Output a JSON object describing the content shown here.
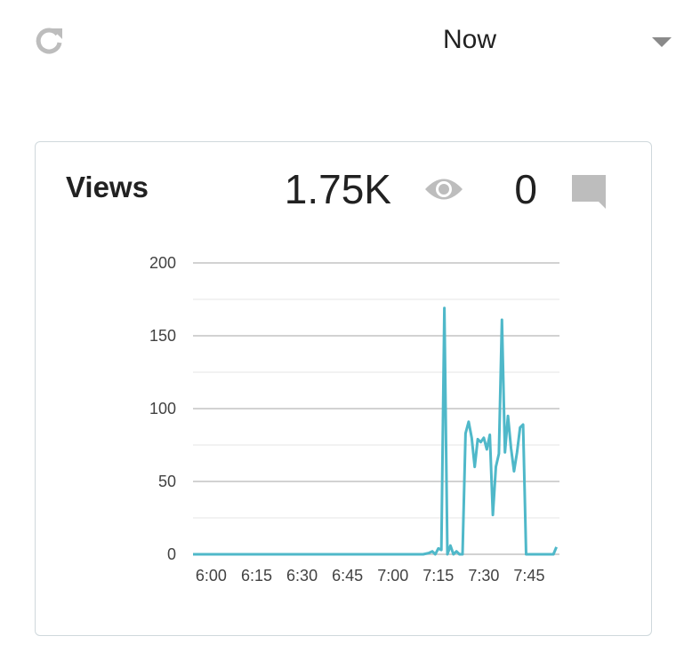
{
  "toolbar": {
    "refresh_icon": "refresh-icon",
    "range_selected": "Now",
    "dropdown_icon": "chevron-down-icon"
  },
  "card": {
    "title": "Views",
    "views_count": "1.75K",
    "views_icon": "eye-icon",
    "comments_count": "0",
    "comments_icon": "comment-icon",
    "colors": {
      "line": "#4fb8c9",
      "icon": "#bdbdbd",
      "border": "#cfd8dc"
    }
  },
  "chart_data": {
    "type": "line",
    "xlabel": "",
    "ylabel": "",
    "ylim": [
      0,
      200
    ],
    "y_ticks": [
      "0",
      "50",
      "100",
      "150",
      "200"
    ],
    "x_ticks": [
      "6:00",
      "6:15",
      "6:30",
      "6:45",
      "7:00",
      "7:15",
      "7:30",
      "7:45"
    ],
    "x_tick_minutes": [
      360,
      375,
      390,
      405,
      420,
      435,
      450,
      465
    ],
    "xlim_minutes": [
      354,
      475
    ],
    "grid": true,
    "series": [
      {
        "name": "",
        "x_minutes": [
          354,
          362,
          372,
          382,
          392,
          402,
          412,
          422,
          430,
          432,
          433,
          434,
          435,
          436,
          437,
          438,
          439,
          440,
          441,
          442,
          443,
          444,
          445,
          446,
          447,
          448,
          449,
          450,
          451,
          452,
          453,
          454,
          455,
          456,
          457,
          458,
          459,
          460,
          461,
          462,
          463,
          464,
          465,
          466,
          467,
          468,
          469,
          470,
          471,
          472,
          473,
          474
        ],
        "values": [
          0,
          0,
          0,
          0,
          0,
          0,
          0,
          0,
          0,
          1,
          2,
          0,
          4,
          3,
          169,
          0,
          6,
          0,
          2,
          0,
          0,
          83,
          91,
          80,
          60,
          79,
          77,
          80,
          72,
          82,
          27,
          60,
          69,
          161,
          70,
          95,
          73,
          57,
          70,
          87,
          89,
          0,
          0,
          0,
          0,
          0,
          0,
          0,
          0,
          0,
          0,
          5
        ]
      }
    ]
  }
}
